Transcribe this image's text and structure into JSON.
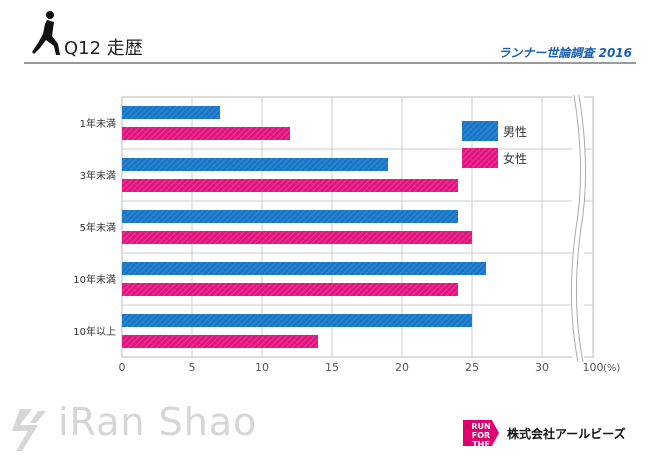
{
  "header": {
    "title": "Q12 走歴",
    "survey": "ランナー世論調査 2016"
  },
  "footer": {
    "watermark": "iRan Shao",
    "badge": "RUN FOR THE FUTURE",
    "company": "株式会社アールビーズ"
  },
  "chart_data": {
    "type": "bar",
    "orientation": "horizontal",
    "categories": [
      "1年未満",
      "3年未満",
      "5年未満",
      "10年未満",
      "10年以上"
    ],
    "series": [
      {
        "name": "男性",
        "color": "#1a75c4",
        "values": [
          7,
          19,
          24,
          26,
          25
        ]
      },
      {
        "name": "女性",
        "color": "#e0157f",
        "values": [
          12,
          24,
          25,
          24,
          14
        ]
      }
    ],
    "xticks": [
      "0",
      "5",
      "10",
      "15",
      "20",
      "25",
      "30",
      "100"
    ],
    "xunit": "(%)",
    "xlim": [
      0,
      100
    ],
    "axis_break": "between 30 and 100",
    "grid": true,
    "legend": "top-right"
  }
}
